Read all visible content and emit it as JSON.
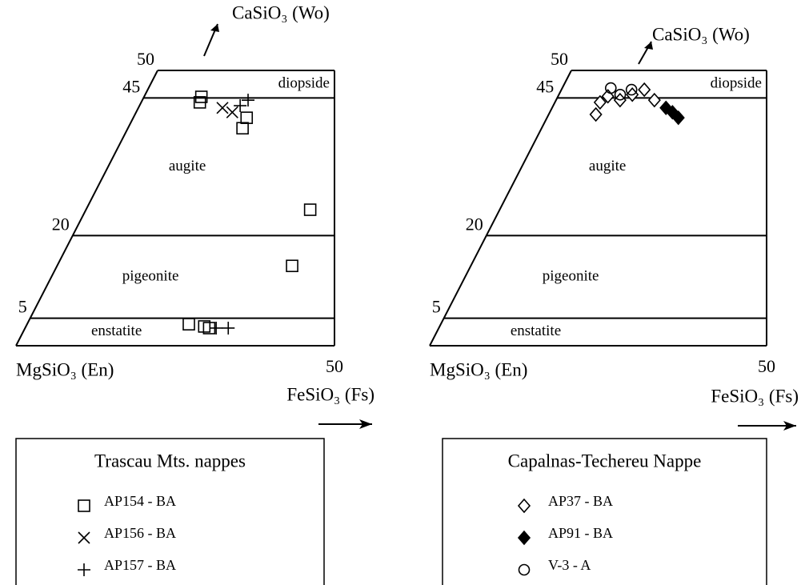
{
  "chart_data": [
    {
      "type": "scatter",
      "y_label": "CaSiO₃ (Wo)",
      "x_start_label": "MgSiO₃ (En)",
      "x_label": "FeSiO₃ (Fs)",
      "xlim": [
        0,
        50
      ],
      "ylim": [
        0,
        50
      ],
      "xticks": [
        50
      ],
      "yticks": [
        5,
        20,
        45,
        50
      ],
      "fields": [
        "diopside",
        "augite",
        "pigeonite",
        "enstatite"
      ],
      "legend_title": "Trascau Mts. nappes",
      "series": [
        {
          "name": "AP154 - BA",
          "marker": "square",
          "color": "#000",
          "x": [
            9.0,
            9.2,
            17.8,
            18.0,
            35.2,
            36.9,
            25.4,
            28.0,
            28.9
          ],
          "values": [
            45.2,
            44.2,
            41.4,
            39.5,
            24.7,
            14.5,
            3.9,
            3.5,
            3.2
          ]
        },
        {
          "name": "AP156 - BA",
          "marker": "cross",
          "color": "#000",
          "x": [
            13.2,
            15.1
          ],
          "values": [
            43.2,
            42.4
          ]
        },
        {
          "name": "AP157 - BA",
          "marker": "plus",
          "color": "#000",
          "x": [
            16.6,
            15.8,
            30.0,
            31.9
          ],
          "values": [
            44.6,
            43.6,
            3.2,
            3.2
          ]
        }
      ]
    },
    {
      "type": "scatter",
      "y_label": "CaSiO₃ (Wo)",
      "x_start_label": "MgSiO₃ (En)",
      "x_label": "FeSiO₃ (Fs)",
      "xlim": [
        0,
        50
      ],
      "ylim": [
        0,
        50
      ],
      "xticks": [
        50
      ],
      "yticks": [
        5,
        20,
        45,
        50
      ],
      "fields": [
        "diopside",
        "augite",
        "pigeonite",
        "enstatite"
      ],
      "legend_title": "Capalnas-Techereu Nappe",
      "series": [
        {
          "name": "AP37 - BA",
          "marker": "diamond",
          "color": "#000",
          "x": [
            7.0,
            7.4,
            9.5,
            10.9,
            12.3,
            14.6,
            6.7
          ],
          "values": [
            42.0,
            45.3,
            44.6,
            45.6,
            46.5,
            44.6,
            44.2
          ]
        },
        {
          "name": "AP91 - BA",
          "marker": "diamond-filled",
          "color": "#000",
          "x": [
            16.9,
            18.2,
            19.5
          ],
          "values": [
            43.2,
            42.4,
            41.4
          ]
        },
        {
          "name": "V-3 - A",
          "marker": "circle",
          "color": "#000",
          "x": [
            7.2,
            10.4,
            9.1
          ],
          "values": [
            46.8,
            46.5,
            45.6
          ]
        }
      ]
    }
  ]
}
